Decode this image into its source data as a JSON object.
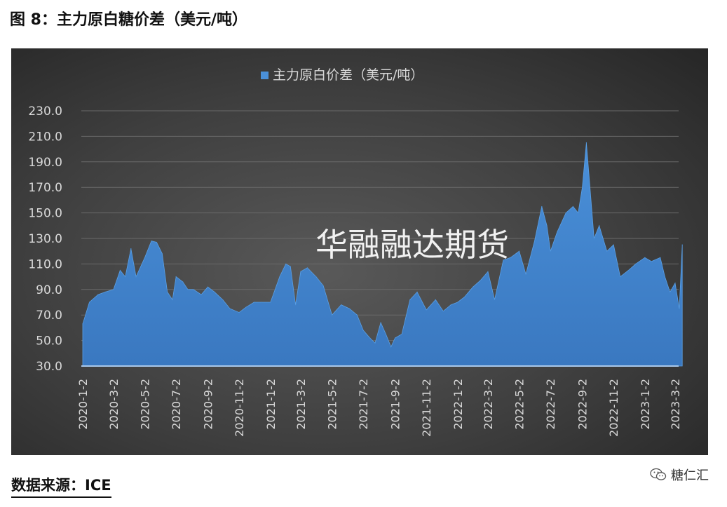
{
  "figure_title": "图 8：主力原白糖价差（美元/吨）",
  "source_text": "数据来源：ICE",
  "brand_text": "糖仁汇",
  "watermark_text": "华融融达期货",
  "colors": {
    "series_fill": "#4a90d9",
    "series_fill_dark": "#3a78c0",
    "background": "#3d3d3d",
    "text": "#d9d9d9"
  },
  "chart_data": {
    "type": "area",
    "title": "",
    "legend": {
      "position": "top-center",
      "entries": [
        "主力原白价差（美元/吨）"
      ]
    },
    "xlabel": "",
    "ylabel": "",
    "ylim": [
      30,
      230
    ],
    "yticks": [
      "230.0",
      "210.0",
      "190.0",
      "170.0",
      "150.0",
      "130.0",
      "110.0",
      "90.0",
      "70.0",
      "50.0",
      "30.0"
    ],
    "xticks": [
      "2020-1-2",
      "2020-3-2",
      "2020-5-2",
      "2020-7-2",
      "2020-9-2",
      "2020-11-2",
      "2021-1-2",
      "2021-3-2",
      "2021-5-2",
      "2021-7-2",
      "2021-9-2",
      "2021-11-2",
      "2022-1-2",
      "2022-3-2",
      "2022-5-2",
      "2022-7-2",
      "2022-9-2",
      "2022-11-2",
      "2023-1-2",
      "2023-3-2"
    ],
    "grid": true,
    "series": [
      {
        "name": "主力原白价差（美元/吨）",
        "x": [
          "2020-01-02",
          "2020-01-15",
          "2020-02-01",
          "2020-02-15",
          "2020-03-02",
          "2020-03-15",
          "2020-03-25",
          "2020-04-05",
          "2020-04-15",
          "2020-05-02",
          "2020-05-15",
          "2020-05-25",
          "2020-06-05",
          "2020-06-15",
          "2020-06-25",
          "2020-07-02",
          "2020-07-15",
          "2020-07-25",
          "2020-08-05",
          "2020-08-20",
          "2020-09-02",
          "2020-09-15",
          "2020-10-01",
          "2020-10-15",
          "2020-11-02",
          "2020-11-15",
          "2020-12-01",
          "2020-12-15",
          "2021-01-02",
          "2021-01-20",
          "2021-02-01",
          "2021-02-10",
          "2021-02-20",
          "2021-03-02",
          "2021-03-15",
          "2021-04-01",
          "2021-04-15",
          "2021-05-02",
          "2021-05-20",
          "2021-06-05",
          "2021-06-20",
          "2021-07-02",
          "2021-07-15",
          "2021-07-25",
          "2021-08-05",
          "2021-08-15",
          "2021-08-25",
          "2021-09-02",
          "2021-09-15",
          "2021-10-01",
          "2021-10-15",
          "2021-11-02",
          "2021-11-20",
          "2021-12-05",
          "2021-12-20",
          "2022-01-02",
          "2022-01-15",
          "2022-02-01",
          "2022-02-15",
          "2022-03-02",
          "2022-03-15",
          "2022-04-01",
          "2022-04-15",
          "2022-05-02",
          "2022-05-15",
          "2022-06-01",
          "2022-06-15",
          "2022-06-25",
          "2022-07-02",
          "2022-07-15",
          "2022-08-01",
          "2022-08-15",
          "2022-08-25",
          "2022-09-02",
          "2022-09-10",
          "2022-09-15",
          "2022-09-25",
          "2022-10-05",
          "2022-10-20",
          "2022-11-02",
          "2022-11-15",
          "2022-12-01",
          "2022-12-15",
          "2023-01-02",
          "2023-01-15",
          "2023-02-01",
          "2023-02-10",
          "2023-02-20",
          "2023-03-02",
          "2023-03-10",
          "2023-03-16"
        ],
        "values": [
          63,
          80,
          86,
          88,
          90,
          105,
          100,
          122,
          100,
          115,
          128,
          127,
          118,
          88,
          82,
          100,
          96,
          90,
          90,
          86,
          92,
          88,
          82,
          75,
          72,
          76,
          80,
          80,
          80,
          100,
          110,
          108,
          78,
          104,
          107,
          100,
          93,
          70,
          78,
          75,
          70,
          58,
          52,
          48,
          64,
          55,
          45,
          52,
          55,
          82,
          88,
          74,
          82,
          73,
          78,
          80,
          84,
          92,
          97,
          104,
          82,
          113,
          115,
          120,
          102,
          128,
          155,
          140,
          120,
          135,
          150,
          155,
          150,
          170,
          205,
          180,
          130,
          140,
          120,
          125,
          100,
          105,
          110,
          115,
          112,
          115,
          100,
          88,
          95,
          75,
          125
        ]
      }
    ]
  }
}
